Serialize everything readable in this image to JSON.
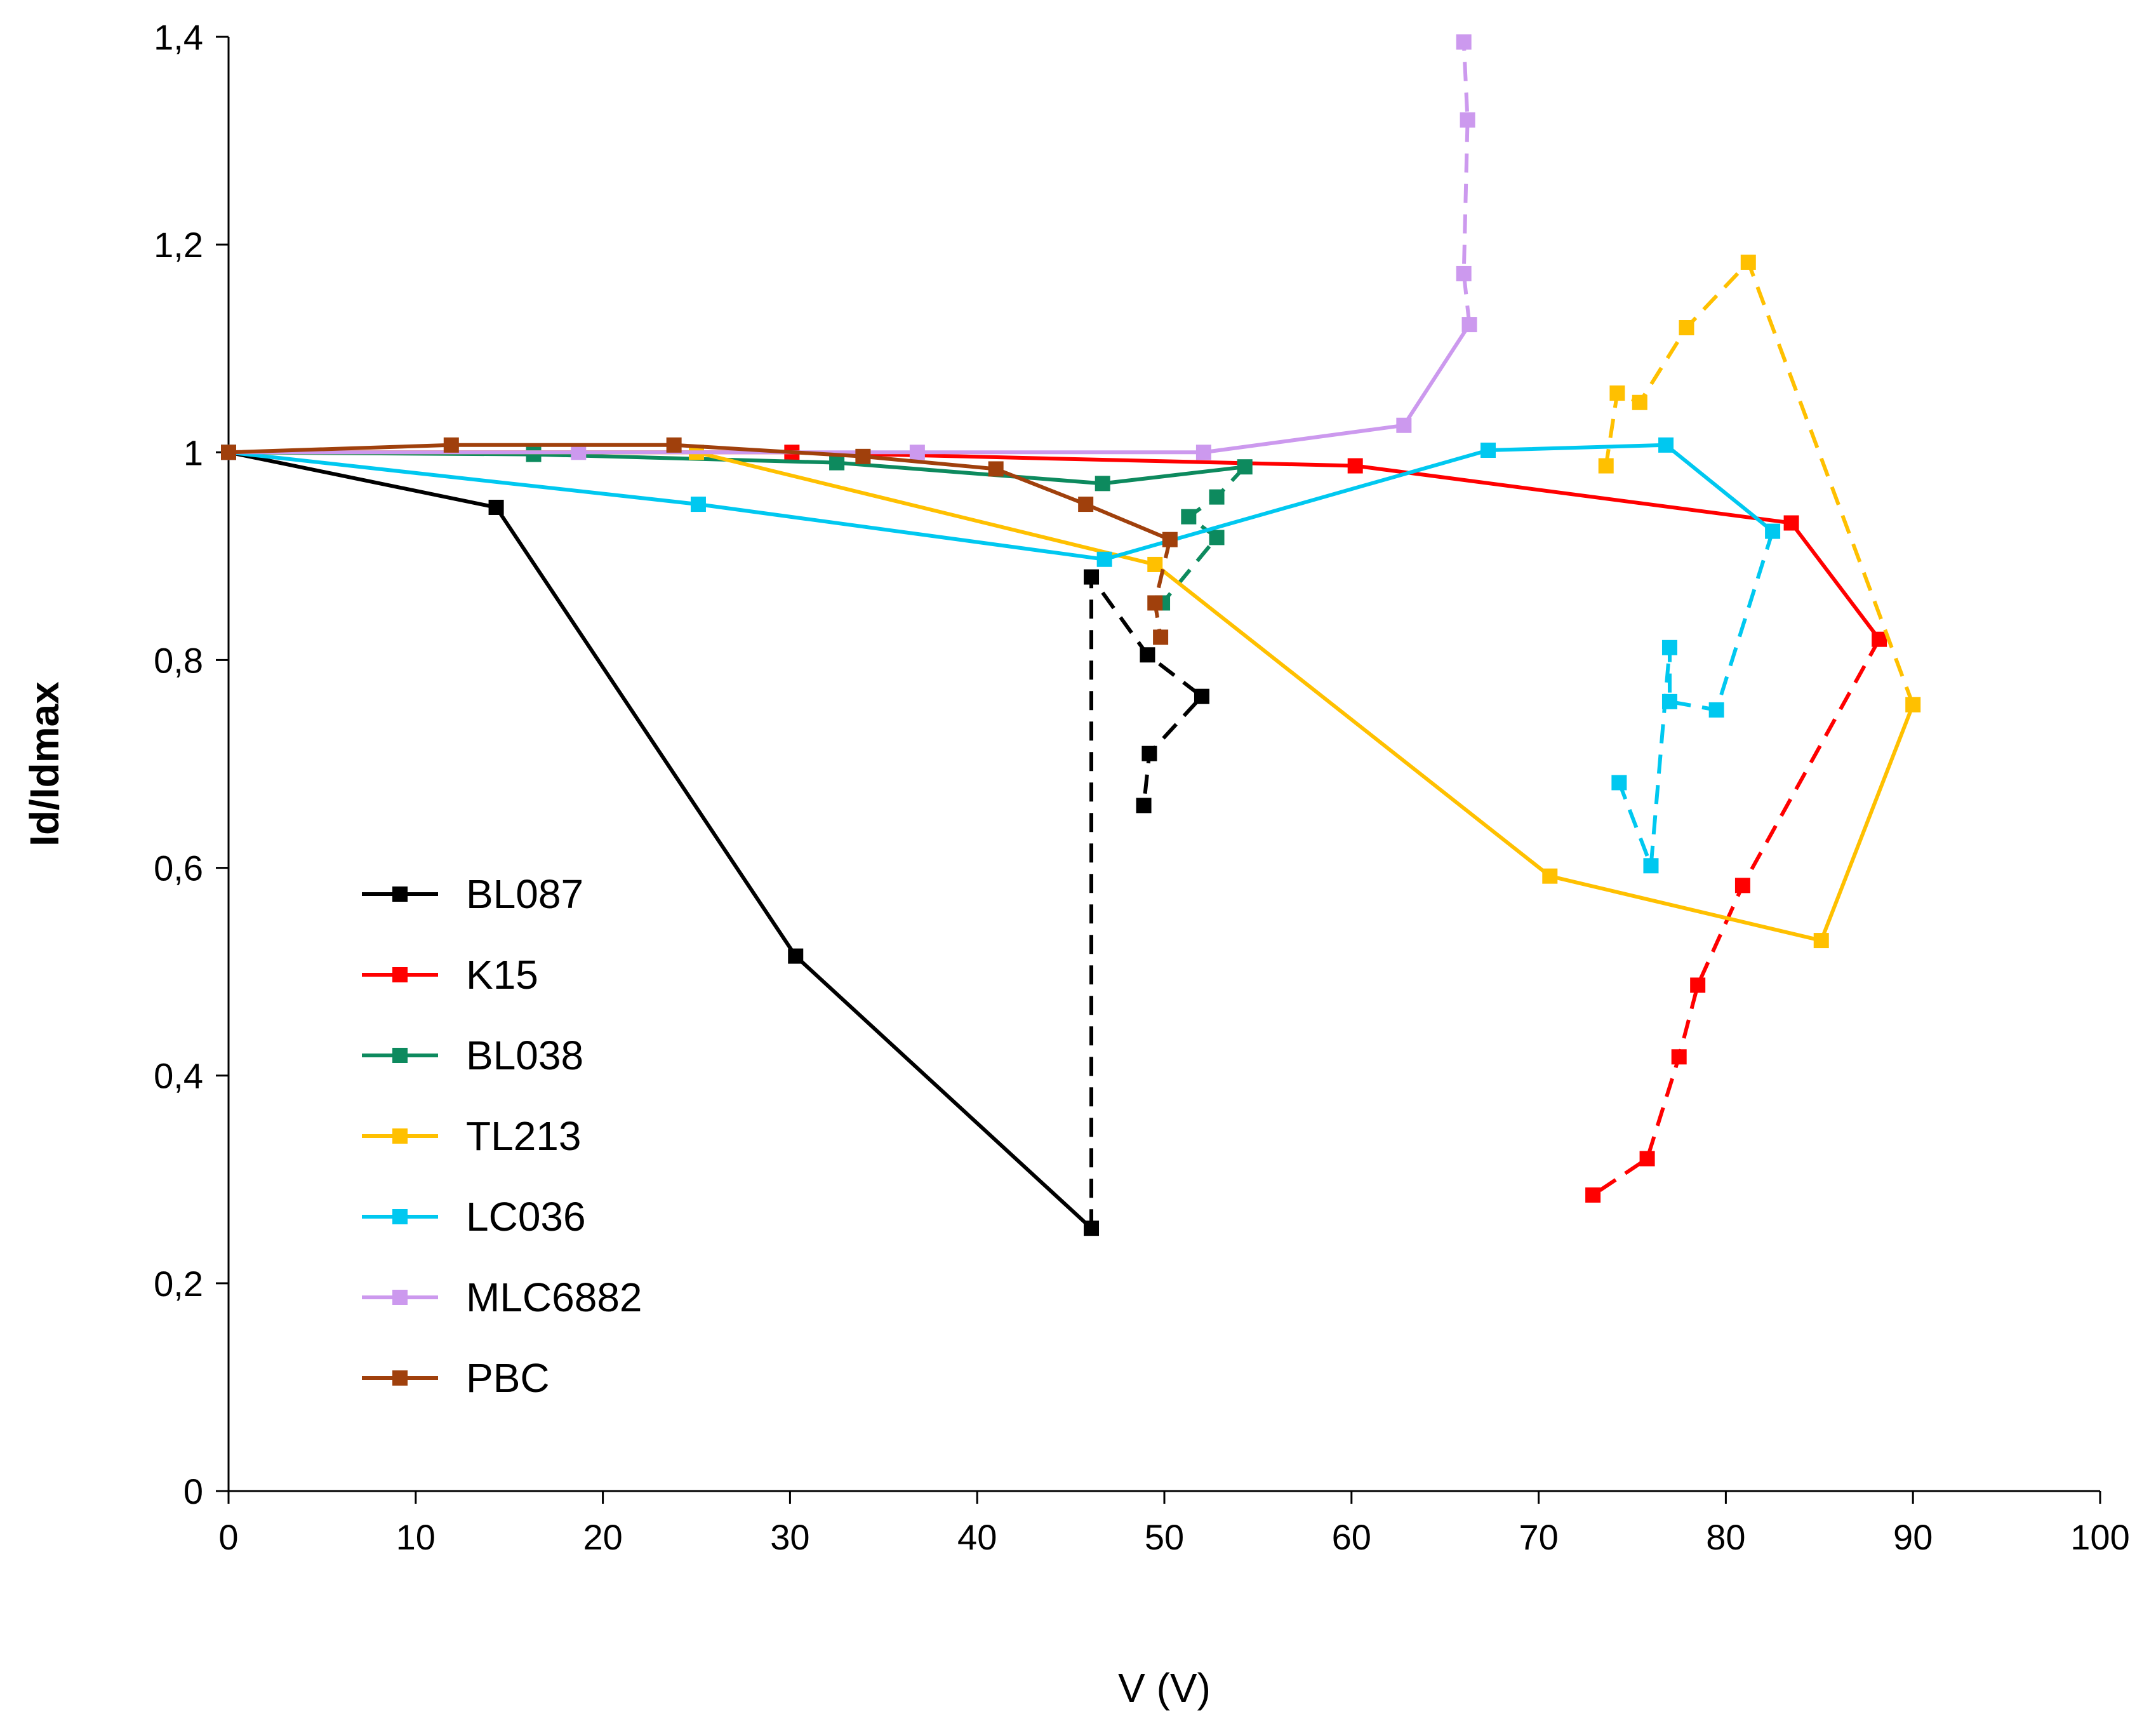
{
  "chart_data": {
    "type": "line",
    "title": "",
    "xlabel": "V (V)",
    "ylabel": "Id/Idmax",
    "xlim": [
      0,
      100
    ],
    "ylim": [
      0,
      1.4
    ],
    "x_ticks": [
      0,
      10,
      20,
      30,
      40,
      50,
      60,
      70,
      80,
      90,
      100
    ],
    "x_tick_labels": [
      "0",
      "10",
      "20",
      "30",
      "40",
      "50",
      "60",
      "70",
      "80",
      "90",
      "100"
    ],
    "y_ticks": [
      0,
      0.2,
      0.4,
      0.6,
      0.8,
      1.0,
      1.2,
      1.4
    ],
    "y_tick_labels": [
      "0",
      "0,2",
      "0,4",
      "0,6",
      "0,8",
      "1",
      "1,2",
      "1,4"
    ],
    "grid": false,
    "legend_position": "lower-left",
    "series": [
      {
        "name": "BL087",
        "color": "#000000",
        "solid": [
          [
            0,
            1.0
          ],
          [
            14.3,
            0.947
          ],
          [
            30.3,
            0.515
          ],
          [
            46.1,
            0.253
          ]
        ],
        "dashed": [
          [
            46.1,
            0.253
          ],
          [
            46.1,
            0.88
          ],
          [
            49.1,
            0.805
          ],
          [
            52.0,
            0.765
          ],
          [
            49.2,
            0.71
          ],
          [
            48.9,
            0.66
          ]
        ]
      },
      {
        "name": "K15",
        "color": "#ff0000",
        "solid": [
          [
            0,
            1.0
          ],
          [
            30.1,
            1.0
          ],
          [
            60.2,
            0.987
          ],
          [
            83.5,
            0.932
          ],
          [
            88.2,
            0.82
          ]
        ],
        "dashed": [
          [
            88.2,
            0.82
          ],
          [
            80.9,
            0.583
          ],
          [
            78.5,
            0.487
          ],
          [
            77.5,
            0.418
          ],
          [
            75.8,
            0.32
          ],
          [
            72.9,
            0.285
          ]
        ]
      },
      {
        "name": "BL038",
        "color": "#0d8a5e",
        "solid": [
          [
            0,
            1.0
          ],
          [
            16.3,
            0.998
          ],
          [
            32.5,
            0.99
          ],
          [
            46.7,
            0.97
          ],
          [
            54.3,
            0.986
          ]
        ],
        "dashed": [
          [
            54.3,
            0.986
          ],
          [
            52.8,
            0.957
          ],
          [
            51.3,
            0.938
          ],
          [
            52.8,
            0.918
          ],
          [
            49.9,
            0.855
          ]
        ]
      },
      {
        "name": "TL213",
        "color": "#ffc000",
        "solid": [
          [
            0,
            1.0
          ],
          [
            25.0,
            1.0
          ],
          [
            49.5,
            0.892
          ],
          [
            70.6,
            0.592
          ],
          [
            85.1,
            0.53
          ],
          [
            90.0,
            0.757
          ]
        ],
        "dashed": [
          [
            90.0,
            0.757
          ],
          [
            81.2,
            1.183
          ],
          [
            77.9,
            1.12
          ],
          [
            75.4,
            1.048
          ],
          [
            74.2,
            1.057
          ],
          [
            73.6,
            0.987
          ]
        ]
      },
      {
        "name": "LC036",
        "color": "#00c8f0",
        "solid": [
          [
            0,
            1.0
          ],
          [
            25.1,
            0.95
          ],
          [
            46.8,
            0.897
          ],
          [
            67.3,
            1.002
          ],
          [
            76.8,
            1.007
          ],
          [
            82.5,
            0.924
          ]
        ],
        "dashed": [
          [
            82.5,
            0.924
          ],
          [
            79.5,
            0.752
          ],
          [
            77.0,
            0.76
          ],
          [
            77.0,
            0.812
          ],
          [
            76.0,
            0.602
          ],
          [
            74.3,
            0.682
          ]
        ]
      },
      {
        "name": "MLC6882",
        "color": "#cc99ee",
        "solid": [
          [
            0,
            1.0
          ],
          [
            18.7,
            1.0
          ],
          [
            36.8,
            1.0
          ],
          [
            52.1,
            1.0
          ],
          [
            62.8,
            1.026
          ],
          [
            66.3,
            1.123
          ]
        ],
        "dashed": [
          [
            66.3,
            1.123
          ],
          [
            66.0,
            1.172
          ],
          [
            66.2,
            1.32
          ],
          [
            66.0,
            1.395
          ]
        ]
      },
      {
        "name": "PBC",
        "color": "#a0400c",
        "solid": [
          [
            0,
            1.0
          ],
          [
            11.9,
            1.007
          ],
          [
            23.8,
            1.007
          ],
          [
            33.9,
            0.996
          ],
          [
            41.0,
            0.984
          ],
          [
            45.8,
            0.95
          ],
          [
            50.3,
            0.916
          ]
        ],
        "dashed": [
          [
            50.3,
            0.916
          ],
          [
            49.5,
            0.855
          ],
          [
            49.8,
            0.822
          ]
        ]
      }
    ]
  }
}
